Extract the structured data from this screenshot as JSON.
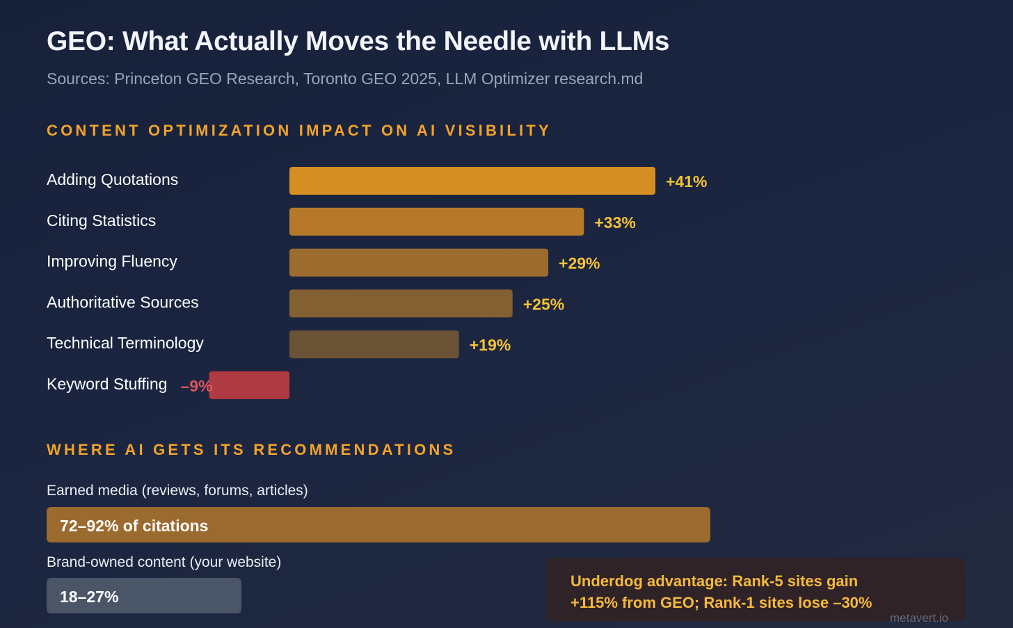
{
  "title": "GEO: What Actually Moves the Needle with LLMs",
  "subtitle": "Sources: Princeton GEO Research, Toronto GEO 2025, LLM Optimizer research.md",
  "section_impact": {
    "heading": "CONTENT OPTIMIZATION IMPACT ON AI VISIBILITY"
  },
  "chart_data": {
    "type": "bar",
    "orientation": "horizontal",
    "title": "CONTENT OPTIMIZATION IMPACT ON AI VISIBILITY",
    "categories": [
      "Adding Quotations",
      "Citing Statistics",
      "Improving Fluency",
      "Authoritative Sources",
      "Technical Terminology",
      "Keyword Stuffing"
    ],
    "values": [
      41,
      33,
      29,
      25,
      19,
      -9
    ],
    "value_labels": [
      "+41%",
      "+33%",
      "+29%",
      "+25%",
      "+19%",
      "–9%"
    ],
    "unit": "% change in AI visibility",
    "colors": [
      "#d48e22",
      "#b6792a",
      "#9c6c2e",
      "#836032",
      "#6a5234",
      "#b03a42"
    ],
    "value_label_colors": [
      "#f5c236",
      "#f5c236",
      "#f5c236",
      "#f5c236",
      "#f5c236",
      "#e0555e"
    ]
  },
  "section_sources": {
    "heading": "WHERE AI GETS ITS RECOMMENDATIONS",
    "items": [
      {
        "label": "Earned media (reviews, forums, articles)",
        "bar_text": "72–92% of citations",
        "share_max_percent": 92,
        "color": "#9b6a2f"
      },
      {
        "label": "Brand-owned content (your website)",
        "bar_text": "18–27%",
        "share_max_percent": 27,
        "color": "#4a5568"
      }
    ]
  },
  "callout": {
    "line1": "Underdog advantage: Rank-5 sites gain",
    "line2": "+115% from GEO; Rank-1 sites lose –30%"
  },
  "watermark": "metavert.io"
}
